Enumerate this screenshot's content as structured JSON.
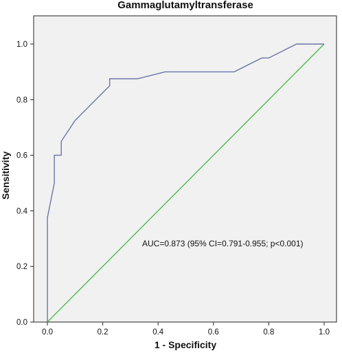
{
  "chart_data": {
    "type": "line",
    "title": "Gammaglutamyltransferase",
    "xlabel": "1 - Specificity",
    "ylabel": "Sensitivity",
    "xlim": [
      0,
      1
    ],
    "ylim": [
      0,
      1
    ],
    "x_ticks": [
      "0.0",
      "0.2",
      "0.4",
      "0.6",
      "0.8",
      "1.0"
    ],
    "y_ticks": [
      "0.0",
      "0.2",
      "0.4",
      "0.6",
      "0.8",
      "1.0"
    ],
    "grid": false,
    "annotation": "AUC=0.873 (95% CI=0.791-0.955; p<0.001)",
    "series": [
      {
        "color": "#6a74a8",
        "points": [
          [
            0.0,
            0.0
          ],
          [
            0.0,
            0.375
          ],
          [
            0.025,
            0.5
          ],
          [
            0.025,
            0.6
          ],
          [
            0.05,
            0.6
          ],
          [
            0.05,
            0.65
          ],
          [
            0.1,
            0.725
          ],
          [
            0.15,
            0.775
          ],
          [
            0.225,
            0.85
          ],
          [
            0.225,
            0.875
          ],
          [
            0.325,
            0.875
          ],
          [
            0.425,
            0.9
          ],
          [
            0.675,
            0.9
          ],
          [
            0.775,
            0.95
          ],
          [
            0.8,
            0.95
          ],
          [
            0.9,
            1.0
          ],
          [
            1.0,
            1.0
          ]
        ]
      },
      {
        "color": "#4cbb4c",
        "points": [
          [
            0,
            0
          ],
          [
            1,
            1
          ]
        ]
      }
    ],
    "plot_background": "#f1f1f1"
  }
}
